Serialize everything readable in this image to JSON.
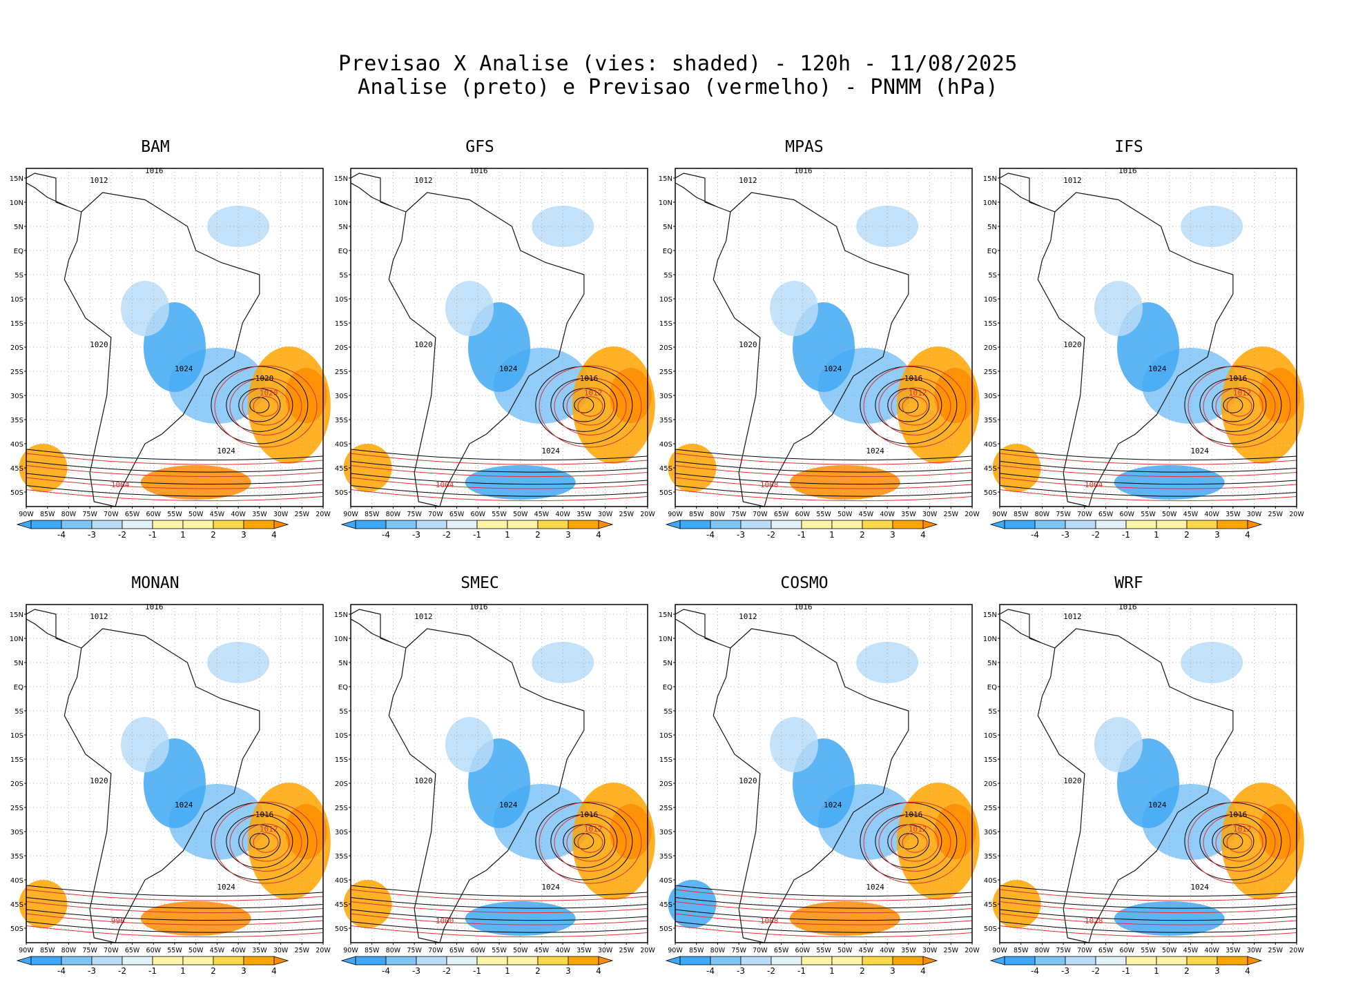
{
  "header": {
    "line1": "Previsao X Analise (vies: shaded) - 120h - 11/08/2025",
    "line2": "Analise (preto) e Previsao (vermelho) - PNMM (hPa)"
  },
  "axes": {
    "lat_labels": [
      "15N",
      "10N",
      "5N",
      "EQ",
      "5S",
      "10S",
      "15S",
      "20S",
      "25S",
      "30S",
      "35S",
      "40S",
      "45S",
      "50S"
    ],
    "lon_labels": [
      "90W",
      "85W",
      "80W",
      "75W",
      "70W",
      "65W",
      "60W",
      "55W",
      "50W",
      "45W",
      "40W",
      "35W",
      "30W",
      "25W",
      "20W"
    ]
  },
  "colorbar": {
    "ticks": [
      "-4",
      "-3",
      "-2",
      "-1",
      "1",
      "2",
      "3",
      "4"
    ],
    "colors": [
      "#3fa9f5",
      "#7ec4f7",
      "#b9dcf8",
      "#e4f3fb",
      "#ffffff",
      "#fff4a8",
      "#ffd84a",
      "#ffa500",
      "#ff8c00"
    ]
  },
  "colors": {
    "analysis": "#000000",
    "forecast": "#e03030",
    "land": "#222222"
  },
  "panels": [
    {
      "name": "BAM",
      "high_label_black": "1020",
      "high_label_red": "1020",
      "low_label_black": "1024",
      "labels": [
        "1012",
        "1016",
        "1020",
        "1024",
        "1004"
      ]
    },
    {
      "name": "GFS",
      "high_label_black": "1016",
      "high_label_red": "1012",
      "low_label_black": "1024",
      "labels": [
        "1012",
        "1016",
        "1020",
        "1024",
        "1004"
      ]
    },
    {
      "name": "MPAS",
      "high_label_black": "1016",
      "high_label_red": "1012",
      "low_label_black": "1024",
      "labels": [
        "1012",
        "1016",
        "1020",
        "1024",
        "1008"
      ]
    },
    {
      "name": "IFS",
      "high_label_black": "1016",
      "high_label_red": "1012",
      "low_label_black": "1024",
      "labels": [
        "1012",
        "1016",
        "1020",
        "1024",
        "1004"
      ]
    },
    {
      "name": "MONAN",
      "high_label_black": "1016",
      "high_label_red": "1012",
      "low_label_black": "1024",
      "labels": [
        "1012",
        "1016",
        "1020",
        "1024",
        "996"
      ]
    },
    {
      "name": "SMEC",
      "high_label_black": "1016",
      "high_label_red": "1012",
      "low_label_black": "1024",
      "labels": [
        "1012",
        "1016",
        "1020",
        "1024",
        "1000"
      ]
    },
    {
      "name": "COSMO",
      "high_label_black": "1016",
      "high_label_red": "1012",
      "low_label_black": "1024",
      "labels": [
        "1012",
        "1016",
        "1020",
        "1024",
        "1008"
      ]
    },
    {
      "name": "WRF",
      "high_label_black": "1016",
      "high_label_red": "1012",
      "low_label_black": "1024",
      "labels": [
        "1012",
        "1016",
        "1020",
        "1024",
        "1028"
      ]
    }
  ]
}
